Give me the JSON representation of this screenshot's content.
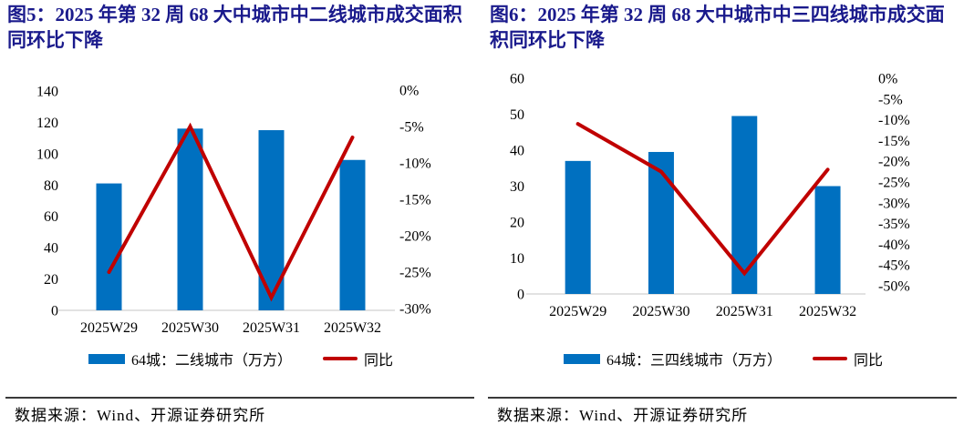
{
  "colors": {
    "bar_blue": "#0070C0",
    "line_red": "#C00000",
    "title_navy": "#1a1a8c",
    "axis_baseline_gray": "#d9d9d9",
    "text_black": "#000000"
  },
  "chart_data": [
    {
      "type": "bar",
      "combo": "bar+line-dual-axis",
      "title": "图5：2025 年第 32 周 68 大中城市中二线城市成交面积同环比下降",
      "title_lines": [
        "图5：2025 年第 32 周 68 大中城市中二线城市成交面积",
        "同环比下降"
      ],
      "categories": [
        "2025W29",
        "2025W30",
        "2025W31",
        "2025W32"
      ],
      "series": [
        {
          "name": "64城：二线城市（万方）",
          "type": "bar",
          "axis": "left",
          "color": "#0070C0",
          "values": [
            81,
            116,
            115,
            96
          ]
        },
        {
          "name": "同比",
          "type": "line",
          "axis": "right",
          "color": "#C00000",
          "values": [
            -25,
            -5,
            -28.5,
            -6.5
          ]
        }
      ],
      "left_axis": {
        "min": 0,
        "max": 140,
        "step": 20,
        "labels": [
          "0",
          "20",
          "40",
          "60",
          "80",
          "100",
          "120",
          "140"
        ]
      },
      "right_axis": {
        "min": -30,
        "max": 0,
        "step": -5,
        "unit": "%",
        "labels": [
          "0%",
          "-5%",
          "-10%",
          "-15%",
          "-20%",
          "-25%",
          "-30%"
        ]
      },
      "grid": false,
      "legend_position": "bottom",
      "source": "数据来源：Wind、开源证券研究所"
    },
    {
      "type": "bar",
      "combo": "bar+line-dual-axis",
      "title": "图6：2025 年第 32 周 68 大中城市中三四线城市成交面积同环比下降",
      "title_lines": [
        "图6：2025 年第 32 周 68 大中城市中三四线城市成交面",
        "积同环比下降"
      ],
      "categories": [
        "2025W29",
        "2025W30",
        "2025W31",
        "2025W32"
      ],
      "series": [
        {
          "name": "64城：三四线城市（万方）",
          "type": "bar",
          "axis": "left",
          "color": "#0070C0",
          "values": [
            37,
            39.5,
            49.5,
            30
          ]
        },
        {
          "name": "同比",
          "type": "line",
          "axis": "right",
          "color": "#C00000",
          "values": [
            -11,
            -22.5,
            -47,
            -22
          ]
        }
      ],
      "left_axis": {
        "min": 0,
        "max": 60,
        "step": 10,
        "labels": [
          "0",
          "10",
          "20",
          "30",
          "40",
          "50",
          "60"
        ]
      },
      "right_axis": {
        "min": -50,
        "max": 0,
        "step": -5,
        "unit": "%",
        "labels": [
          "0%",
          "-5%",
          "-10%",
          "-15%",
          "-20%",
          "-25%",
          "-30%",
          "-35%",
          "-40%",
          "-45%",
          "-50%"
        ]
      },
      "grid": false,
      "legend_position": "bottom",
      "source": "数据来源：Wind、开源证券研究所"
    }
  ]
}
